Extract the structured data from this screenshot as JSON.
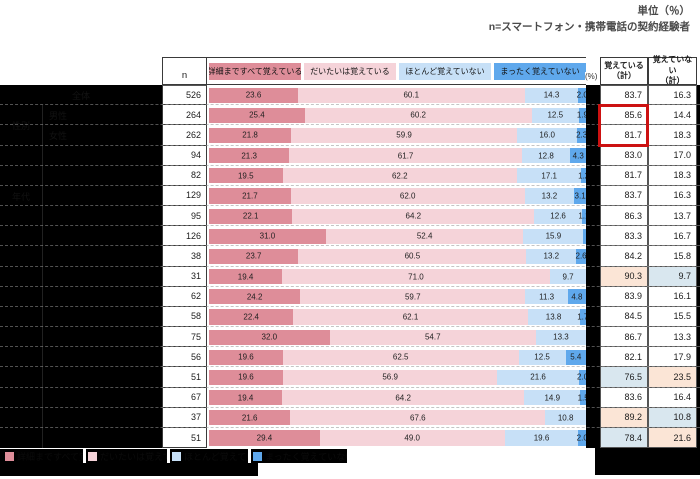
{
  "title_block": {
    "unit": "単位（％）",
    "sample": "n=スマートフォン・携帯電話の契約経験者"
  },
  "header": {
    "n": "n",
    "percent": "(%)",
    "remember_total": {
      "line1": "覚えている",
      "line2": "（計）"
    },
    "not_remember_total": {
      "line1": "覚えていない",
      "line2": "（計）"
    }
  },
  "legend": [
    {
      "label": "詳細まですべて覚えている",
      "color": "#de8d99"
    },
    {
      "label": "だいたいは覚えている",
      "color": "#f5d3d9"
    },
    {
      "label": "ほとんど覚えていない",
      "color": "#c7e0f7"
    },
    {
      "label": "まったく覚えていない",
      "color": "#5fa8ec"
    }
  ],
  "groups": [
    {
      "label": "性別"
    },
    {
      "label": "年代"
    },
    {
      "label": ""
    }
  ],
  "highlight_colors": {
    "high": "#fbe5d6",
    "low": "#d9e7ef"
  },
  "accent_colors": {
    "emphasis_box": "#cc1111",
    "redaction": "#000000"
  },
  "chart_data": {
    "type": "bar",
    "stacked": true,
    "orientation": "horizontal",
    "unit": "%",
    "xlim": [
      0,
      100
    ],
    "categories": [
      "全体",
      "男性",
      "女性",
      "",
      "",
      "",
      "",
      "",
      "",
      "",
      "",
      "",
      "",
      "",
      "",
      "",
      "",
      ""
    ],
    "n": [
      526,
      264,
      262,
      94,
      82,
      129,
      95,
      126,
      38,
      31,
      62,
      58,
      75,
      56,
      51,
      67,
      37,
      51
    ],
    "series": [
      {
        "name": "詳細まですべて覚えている",
        "color": "#de8d99",
        "values": [
          23.6,
          25.4,
          21.8,
          21.3,
          19.5,
          21.7,
          22.1,
          31.0,
          23.7,
          19.4,
          24.2,
          22.4,
          32.0,
          19.6,
          19.6,
          19.4,
          21.6,
          29.4
        ]
      },
      {
        "name": "だいたいは覚えている",
        "color": "#f5d3d9",
        "values": [
          60.1,
          60.2,
          59.9,
          61.7,
          62.2,
          62.0,
          64.2,
          52.4,
          60.5,
          71.0,
          59.7,
          62.1,
          54.7,
          62.5,
          56.9,
          64.2,
          67.6,
          49.0
        ]
      },
      {
        "name": "ほとんど覚えていない",
        "color": "#c7e0f7",
        "values": [
          14.3,
          12.5,
          16.0,
          12.8,
          17.1,
          13.2,
          12.6,
          15.9,
          13.2,
          9.7,
          11.3,
          13.8,
          13.3,
          12.5,
          21.6,
          14.9,
          10.8,
          19.6
        ]
      },
      {
        "name": "まったく覚えていない",
        "color": "#5fa8ec",
        "values": [
          2.0,
          1.9,
          2.3,
          4.3,
          1.2,
          3.1,
          1.1,
          0.8,
          2.6,
          0.0,
          4.8,
          1.7,
          0.0,
          5.4,
          2.0,
          1.5,
          0.0,
          2.0
        ]
      }
    ],
    "remember_total": [
      83.7,
      85.6,
      81.7,
      83.0,
      81.7,
      83.7,
      86.3,
      83.3,
      84.2,
      90.3,
      83.9,
      84.5,
      86.7,
      82.1,
      76.5,
      83.6,
      89.2,
      78.4
    ],
    "not_remember_total": [
      16.3,
      14.4,
      18.3,
      17.0,
      18.3,
      16.3,
      13.7,
      16.7,
      15.8,
      9.7,
      16.1,
      15.5,
      13.3,
      17.9,
      23.5,
      16.4,
      10.8,
      21.6
    ],
    "highlight": [
      null,
      null,
      null,
      null,
      null,
      null,
      null,
      null,
      null,
      "high",
      null,
      null,
      null,
      null,
      "low",
      null,
      "high",
      "low"
    ],
    "emphasis_box_rows": [
      2,
      3
    ]
  },
  "footer": {
    "items": [
      "詳細まですべて覚えている",
      "だいたいは覚えている",
      "ほとんど覚えていない",
      "まったく覚えていない"
    ]
  }
}
